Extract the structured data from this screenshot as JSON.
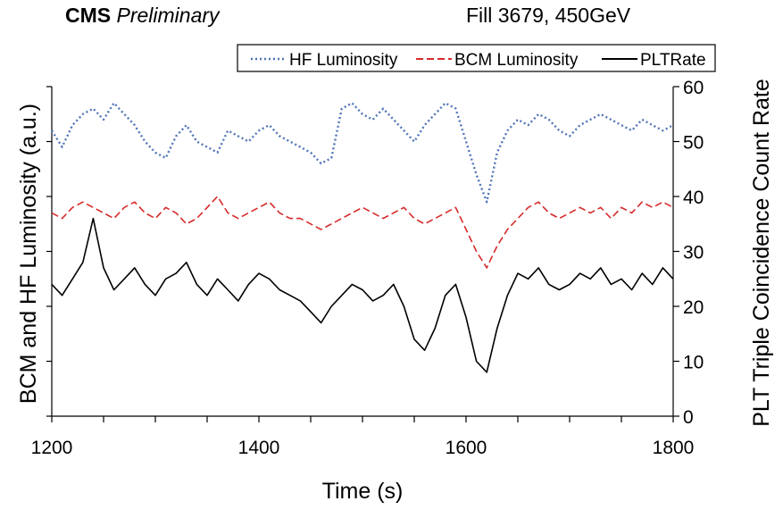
{
  "header": {
    "experiment": "CMS",
    "status": "Preliminary",
    "fill": "Fill 3679, 450GeV"
  },
  "chart_data": {
    "type": "line",
    "xlabel": "Time (s)",
    "ylabel_left": "BCM and HF Luminosity (a.u.)",
    "ylabel_right": "PLT Triple Coincidence Count Rate",
    "xlim": [
      1200,
      1800
    ],
    "ylim_right": [
      0,
      60
    ],
    "x_ticks": [
      "1200",
      "1400",
      "1600",
      "1800"
    ],
    "y_ticks_right": [
      "0",
      "10",
      "20",
      "30",
      "40",
      "50",
      "60"
    ],
    "grid": false,
    "legend_position": "top",
    "x": [
      1200,
      1210,
      1220,
      1230,
      1240,
      1250,
      1260,
      1270,
      1280,
      1290,
      1300,
      1310,
      1320,
      1330,
      1340,
      1350,
      1360,
      1370,
      1380,
      1390,
      1400,
      1410,
      1420,
      1430,
      1440,
      1450,
      1460,
      1470,
      1480,
      1490,
      1500,
      1510,
      1520,
      1530,
      1540,
      1550,
      1560,
      1570,
      1580,
      1590,
      1600,
      1610,
      1620,
      1630,
      1640,
      1650,
      1660,
      1670,
      1680,
      1690,
      1700,
      1710,
      1720,
      1730,
      1740,
      1750,
      1760,
      1770,
      1780,
      1790,
      1800
    ],
    "series": [
      {
        "name": "HF Luminosity",
        "color": "#4f74b8",
        "style": "dotted",
        "axis": "left",
        "values": [
          52,
          49,
          53,
          55,
          56,
          54,
          57,
          55,
          53,
          50,
          48,
          47,
          51,
          53,
          50,
          49,
          48,
          52,
          51,
          50,
          52,
          53,
          51,
          50,
          49,
          48,
          46,
          47,
          56,
          57,
          55,
          54,
          56,
          54,
          52,
          50,
          53,
          55,
          57,
          56,
          50,
          44,
          39,
          48,
          52,
          54,
          53,
          55,
          54,
          52,
          51,
          53,
          54,
          55,
          54,
          53,
          52,
          54,
          53,
          52,
          53
        ]
      },
      {
        "name": "BCM Luminosity",
        "color": "#d62a2a",
        "style": "dashed",
        "axis": "left",
        "values": [
          37,
          36,
          38,
          39,
          38,
          37,
          36,
          38,
          39,
          37,
          36,
          38,
          37,
          35,
          36,
          38,
          40,
          37,
          36,
          37,
          38,
          39,
          37,
          36,
          36,
          35,
          34,
          35,
          36,
          37,
          38,
          37,
          36,
          37,
          38,
          36,
          35,
          36,
          37,
          38,
          34,
          30,
          27,
          31,
          34,
          36,
          38,
          39,
          37,
          36,
          37,
          38,
          37,
          38,
          36,
          38,
          37,
          39,
          38,
          39,
          38
        ]
      },
      {
        "name": "PLTRate",
        "color": "#000000",
        "style": "solid",
        "axis": "right",
        "values": [
          24,
          22,
          25,
          28,
          36,
          27,
          23,
          25,
          27,
          24,
          22,
          25,
          26,
          28,
          24,
          22,
          25,
          23,
          21,
          24,
          26,
          25,
          23,
          22,
          21,
          19,
          17,
          20,
          22,
          24,
          23,
          21,
          22,
          24,
          20,
          14,
          12,
          16,
          22,
          24,
          18,
          10,
          8,
          16,
          22,
          26,
          25,
          27,
          24,
          23,
          24,
          26,
          25,
          27,
          24,
          25,
          23,
          26,
          24,
          27,
          25
        ]
      }
    ]
  }
}
